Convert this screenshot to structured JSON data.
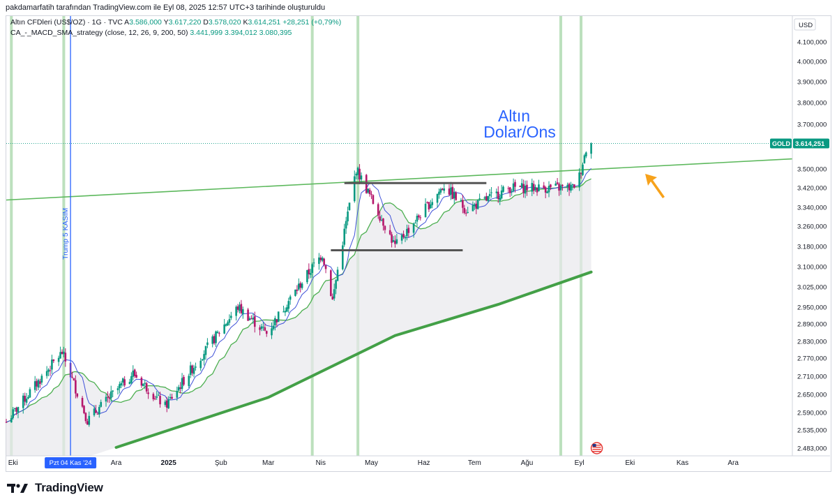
{
  "credit": "pakdamarfatih tarafından TradingView.com ile Eyl 08, 2025 12:57 UTC+3 tarihinde oluşturuldu",
  "legend": {
    "symbol_line": {
      "name": "Altın CFDleri (US$/OZ) · 1G · TVC",
      "o_label": "A",
      "o": "3.586,000",
      "h_label": "Y",
      "h": "3.617,220",
      "l_label": "D",
      "l": "3.578,020",
      "c_label": "K",
      "c": "3.614,251",
      "change": "+28,251 (+0,79%)"
    },
    "indicator_line": {
      "name": "CA_-_MACD_SMA_strategy (close, 12, 26, 9, 200, 50)",
      "v1": "3.441,999",
      "v2": "3.394,012",
      "v3": "3.080,395"
    }
  },
  "price_axis": {
    "currency": "USD",
    "ticks": [
      "4.100,000",
      "4.000,000",
      "3.900,000",
      "3.800,000",
      "3.700,000",
      "3.500,000",
      "3.420,000",
      "3.340,000",
      "3.260,000",
      "3.180,000",
      "3.100,000",
      "3.025,000",
      "2.950,000",
      "2.890,000",
      "2.830,000",
      "2.770,000",
      "2.710,000",
      "2.650,000",
      "2.590,000",
      "2.535,000",
      "2.483,000"
    ],
    "last_label": "GOLD",
    "last_value": "3.614,251"
  },
  "time_axis": {
    "labels": [
      "Eki",
      "Ara",
      "2025",
      "Şub",
      "Mar",
      "Nis",
      "May",
      "Haz",
      "Tem",
      "Ağu",
      "Eyl",
      "Eki",
      "Kas",
      "Ara"
    ],
    "highlight": "Pzt 04 Kas '24"
  },
  "annotations": {
    "title_line1": "Altın",
    "title_line2": "Dolar/Ons",
    "vertical_label": "Trump 5 KASIM"
  },
  "footer": {
    "brand": "TradingView"
  },
  "colors": {
    "up": "#089981",
    "down": "#b5166b",
    "ma_fast": "#4caf50",
    "ma_slow": "#43a047",
    "ma_blue": "#3f51d8",
    "trend": "#5cb85c",
    "signal_band": "#a5d6a7",
    "vline": "#2962ff",
    "arrow": "#f7a21b",
    "title": "#2962ff",
    "gold_tag": "#089981"
  },
  "chart_data": {
    "type": "candlestick",
    "symbol": "GOLD",
    "interval": "1G",
    "currency": "USD",
    "ylim": [
      2483,
      4100
    ],
    "x_range": [
      "2024-09-27",
      "2026-01-05"
    ],
    "last_close": 3614.251,
    "key_points": [
      {
        "date": "2024-09-27",
        "close": 2560
      },
      {
        "date": "2024-10-30",
        "close": 2790
      },
      {
        "date": "2024-11-14",
        "close": 2565
      },
      {
        "date": "2024-12-11",
        "close": 2720
      },
      {
        "date": "2024-12-30",
        "close": 2610
      },
      {
        "date": "2025-02-11",
        "close": 2950
      },
      {
        "date": "2025-02-28",
        "close": 2858
      },
      {
        "date": "2025-04-02",
        "close": 3150
      },
      {
        "date": "2025-04-08",
        "close": 2975
      },
      {
        "date": "2025-04-22",
        "close": 3500
      },
      {
        "date": "2025-05-15",
        "close": 3180
      },
      {
        "date": "2025-06-13",
        "close": 3430
      },
      {
        "date": "2025-06-26",
        "close": 3330
      },
      {
        "date": "2025-07-22",
        "close": 3420
      },
      {
        "date": "2025-08-28",
        "close": 3420
      },
      {
        "date": "2025-09-01",
        "close": 3470
      },
      {
        "date": "2025-09-05",
        "close": 3590
      },
      {
        "date": "2025-09-08",
        "close": 3614.251
      }
    ],
    "ma_slow": [
      {
        "date": "2024-12-01",
        "value": 2485
      },
      {
        "date": "2025-03-01",
        "value": 2640
      },
      {
        "date": "2025-05-15",
        "value": 2850
      },
      {
        "date": "2025-07-15",
        "value": 2960
      },
      {
        "date": "2025-09-08",
        "value": 3080
      }
    ],
    "trendline": [
      {
        "date": "2024-09-27",
        "value": 3370
      },
      {
        "date": "2026-01-05",
        "value": 3545
      }
    ],
    "resistance": {
      "start": "2025-04-15",
      "end": "2025-07-08",
      "value": 3440
    },
    "support": {
      "start": "2025-04-07",
      "end": "2025-06-24",
      "value": 3165
    },
    "vertical_markers": [
      "2024-11-04"
    ],
    "signal_days": [
      "2024-09-30",
      "2024-10-31",
      "2025-03-27",
      "2025-04-23",
      "2025-08-21",
      "2025-09-02"
    ]
  }
}
